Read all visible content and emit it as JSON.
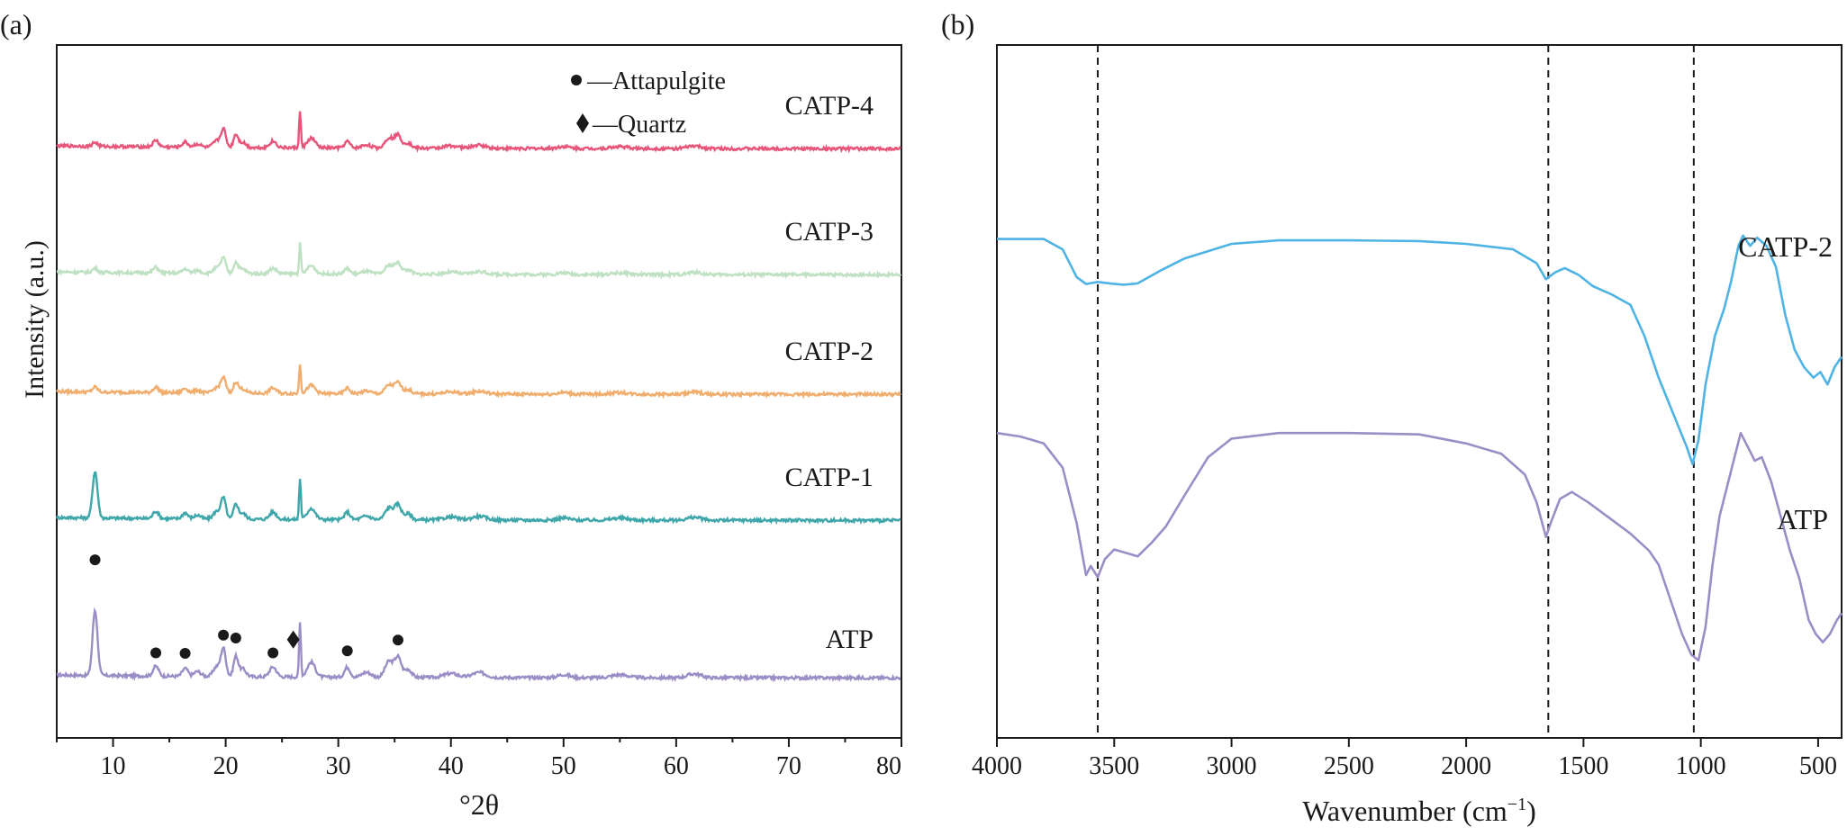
{
  "chart_data": [
    {
      "panel_label": "(a)",
      "type": "line",
      "xlabel": "°2θ",
      "ylabel": "Intensity (a.u.)",
      "xlim": [
        5,
        80
      ],
      "x_ticks": [
        10,
        20,
        30,
        40,
        50,
        60,
        70,
        80
      ],
      "legend": [
        {
          "marker": "circle",
          "label": "—Attapulgite"
        },
        {
          "marker": "diamond",
          "label": "—Quartz"
        }
      ],
      "peak_markers": {
        "attapulgite_2theta": [
          8.4,
          13.8,
          16.4,
          19.8,
          20.9,
          24.2,
          30.8,
          35.3
        ],
        "quartz_2theta": [
          26.0
        ]
      },
      "series": [
        {
          "name": "ATP",
          "color": "#9B8EC6",
          "baseline": 0.0,
          "main_peak": 0.66,
          "minor": 1.0
        },
        {
          "name": "CATP-1",
          "color": "#3FA6AA",
          "baseline": 0.25,
          "main_peak": 0.47,
          "minor": 0.75
        },
        {
          "name": "CATP-2",
          "color": "#F0AE6E",
          "baseline": 0.45,
          "main_peak": 0.05,
          "minor": 0.55
        },
        {
          "name": "CATP-3",
          "color": "#BFE1C3",
          "baseline": 0.64,
          "main_peak": 0.04,
          "minor": 0.55
        },
        {
          "name": "CATP-4",
          "color": "#E8557A",
          "baseline": 0.84,
          "main_peak": 0.04,
          "minor": 0.65
        }
      ]
    },
    {
      "panel_label": "(b)",
      "type": "line",
      "xlabel": "Wavenumber (cm−1)",
      "xlabel_main": "Wavenumber (cm",
      "xlabel_sup": "−1",
      "xlabel_close": ")",
      "xlim": [
        4000,
        400
      ],
      "x_ticks": [
        4000,
        3500,
        3000,
        2500,
        2000,
        1500,
        1000,
        500
      ],
      "reference_lines_cm1": [
        3570,
        1650,
        1030
      ],
      "series": [
        {
          "name": "CATP-2",
          "color": "#4FB3E3",
          "points": [
            [
              4000,
              0.72
            ],
            [
              3900,
              0.72
            ],
            [
              3800,
              0.72
            ],
            [
              3720,
              0.705
            ],
            [
              3660,
              0.665
            ],
            [
              3620,
              0.655
            ],
            [
              3570,
              0.658
            ],
            [
              3520,
              0.656
            ],
            [
              3460,
              0.654
            ],
            [
              3400,
              0.656
            ],
            [
              3300,
              0.675
            ],
            [
              3200,
              0.692
            ],
            [
              3000,
              0.713
            ],
            [
              2800,
              0.718
            ],
            [
              2500,
              0.718
            ],
            [
              2200,
              0.717
            ],
            [
              2000,
              0.713
            ],
            [
              1800,
              0.705
            ],
            [
              1700,
              0.685
            ],
            [
              1660,
              0.662
            ],
            [
              1620,
              0.672
            ],
            [
              1580,
              0.678
            ],
            [
              1520,
              0.668
            ],
            [
              1460,
              0.652
            ],
            [
              1380,
              0.64
            ],
            [
              1300,
              0.625
            ],
            [
              1240,
              0.58
            ],
            [
              1180,
              0.52
            ],
            [
              1120,
              0.47
            ],
            [
              1060,
              0.42
            ],
            [
              1035,
              0.395
            ],
            [
              1010,
              0.43
            ],
            [
              980,
              0.51
            ],
            [
              940,
              0.58
            ],
            [
              900,
              0.62
            ],
            [
              870,
              0.66
            ],
            [
              840,
              0.71
            ],
            [
              820,
              0.725
            ],
            [
              790,
              0.71
            ],
            [
              760,
              0.722
            ],
            [
              720,
              0.71
            ],
            [
              680,
              0.68
            ],
            [
              640,
              0.61
            ],
            [
              600,
              0.56
            ],
            [
              560,
              0.535
            ],
            [
              520,
              0.52
            ],
            [
              490,
              0.528
            ],
            [
              460,
              0.51
            ],
            [
              430,
              0.535
            ],
            [
              400,
              0.55
            ]
          ]
        },
        {
          "name": "ATP",
          "color": "#9B8EC6",
          "points": [
            [
              4000,
              0.44
            ],
            [
              3900,
              0.435
            ],
            [
              3800,
              0.425
            ],
            [
              3720,
              0.39
            ],
            [
              3660,
              0.31
            ],
            [
              3620,
              0.235
            ],
            [
              3600,
              0.248
            ],
            [
              3570,
              0.232
            ],
            [
              3540,
              0.258
            ],
            [
              3500,
              0.272
            ],
            [
              3460,
              0.268
            ],
            [
              3400,
              0.262
            ],
            [
              3340,
              0.282
            ],
            [
              3280,
              0.305
            ],
            [
              3200,
              0.35
            ],
            [
              3100,
              0.405
            ],
            [
              3000,
              0.432
            ],
            [
              2800,
              0.44
            ],
            [
              2500,
              0.44
            ],
            [
              2200,
              0.438
            ],
            [
              2000,
              0.425
            ],
            [
              1850,
              0.41
            ],
            [
              1750,
              0.38
            ],
            [
              1700,
              0.34
            ],
            [
              1660,
              0.29
            ],
            [
              1640,
              0.31
            ],
            [
              1600,
              0.345
            ],
            [
              1550,
              0.355
            ],
            [
              1480,
              0.34
            ],
            [
              1400,
              0.32
            ],
            [
              1300,
              0.295
            ],
            [
              1220,
              0.27
            ],
            [
              1180,
              0.25
            ],
            [
              1130,
              0.2
            ],
            [
              1080,
              0.15
            ],
            [
              1040,
              0.12
            ],
            [
              1010,
              0.112
            ],
            [
              980,
              0.16
            ],
            [
              950,
              0.25
            ],
            [
              920,
              0.32
            ],
            [
              890,
              0.36
            ],
            [
              860,
              0.4
            ],
            [
              830,
              0.44
            ],
            [
              800,
              0.42
            ],
            [
              770,
              0.4
            ],
            [
              740,
              0.405
            ],
            [
              700,
              0.37
            ],
            [
              660,
              0.32
            ],
            [
              620,
              0.27
            ],
            [
              580,
              0.23
            ],
            [
              540,
              0.17
            ],
            [
              510,
              0.15
            ],
            [
              480,
              0.138
            ],
            [
              450,
              0.15
            ],
            [
              420,
              0.17
            ],
            [
              400,
              0.18
            ]
          ]
        }
      ]
    }
  ]
}
